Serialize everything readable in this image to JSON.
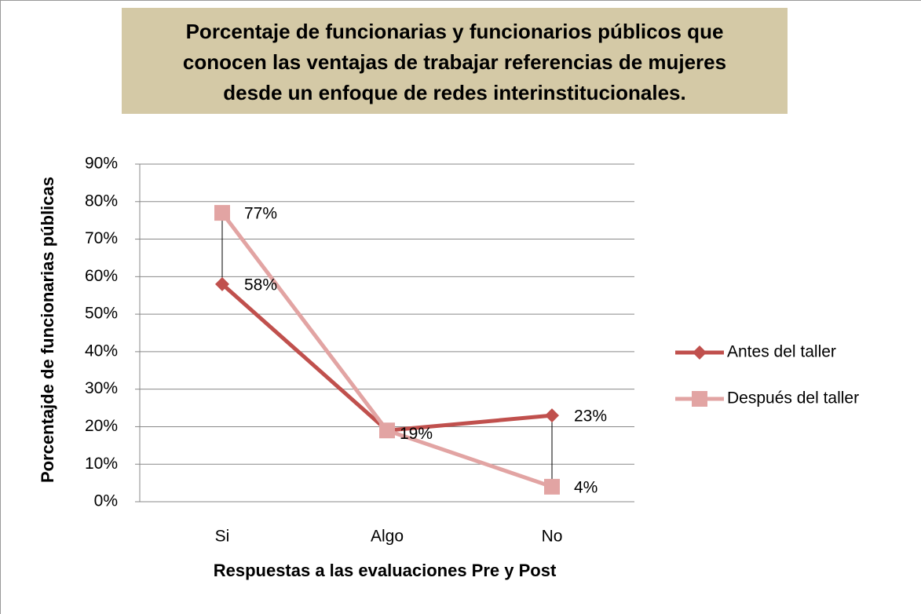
{
  "chart_data": {
    "type": "line",
    "title": [
      "Porcentaje de funcionarias y funcionarios públicos que",
      "conocen las ventajas de trabajar referencias de mujeres",
      "desde un enfoque de redes interinstitucionales."
    ],
    "x_label": "Respuestas a las evaluaciones Pre y Post",
    "y_label": "Porcentajde de funcionarias públicas",
    "categories": [
      "Si",
      "Algo",
      "No"
    ],
    "series": [
      {
        "name": "Antes del taller",
        "color": "#c0504d",
        "marker": "diamond",
        "values": [
          58,
          19,
          23
        ],
        "value_labels": [
          "58%",
          "19%",
          "23%"
        ]
      },
      {
        "name": "Después del taller",
        "color": "#e2a4a3",
        "marker": "square",
        "values": [
          77,
          19,
          4
        ],
        "value_labels": [
          "77%",
          null,
          "4%"
        ]
      }
    ],
    "ylim": [
      0,
      90
    ],
    "yticks": [
      {
        "value": 0,
        "label": "0%"
      },
      {
        "value": 10,
        "label": "10%"
      },
      {
        "value": 20,
        "label": "20%"
      },
      {
        "value": 30,
        "label": "30%"
      },
      {
        "value": 40,
        "label": "40%"
      },
      {
        "value": 50,
        "label": "50%"
      },
      {
        "value": 60,
        "label": "60%"
      },
      {
        "value": 70,
        "label": "70%"
      },
      {
        "value": 80,
        "label": "80%"
      },
      {
        "value": 90,
        "label": "90%"
      }
    ],
    "grid": true,
    "drop_lines": true,
    "legend": "right"
  }
}
